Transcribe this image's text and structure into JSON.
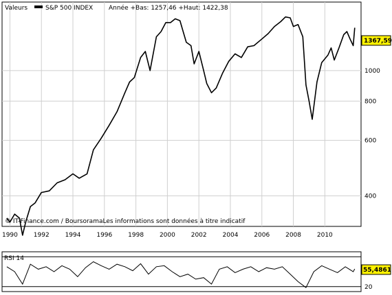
{
  "header": {
    "prefix": "Valeurs",
    "index_name": "S&P 500 INDEX",
    "range_text": "Année +Bas: 1257,46 +Haut: 1422,38"
  },
  "footer_credit": "© IT-Finance.com / BoursoramaLes informations sont données à titre indicatif",
  "colors": {
    "price_line": "#000000",
    "last_value_box": "#fff200",
    "background": "#ffffff",
    "grid": "#cfcfcf"
  },
  "chart_data": [
    {
      "type": "line",
      "title": "",
      "series": [
        {
          "name": "S&P 500 INDEX",
          "x": [
            1989.8,
            1990.0,
            1990.3,
            1990.6,
            1990.8,
            1991.0,
            1991.3,
            1991.6,
            1992.0,
            1992.5,
            1993.0,
            1993.5,
            1994.0,
            1994.4,
            1994.9,
            1995.3,
            1995.8,
            1996.3,
            1996.8,
            1997.3,
            1997.6,
            1997.9,
            1998.3,
            1998.6,
            1998.9,
            1999.3,
            1999.6,
            1999.9,
            2000.2,
            2000.5,
            2000.8,
            2001.0,
            2001.2,
            2001.5,
            2001.7,
            2002.0,
            2002.3,
            2002.5,
            2002.8,
            2003.1,
            2003.5,
            2003.9,
            2004.3,
            2004.7,
            2005.1,
            2005.5,
            2006.0,
            2006.4,
            2006.8,
            2007.2,
            2007.5,
            2007.8,
            2008.0,
            2008.3,
            2008.6,
            2008.8,
            2009.0,
            2009.2,
            2009.5,
            2009.8,
            2010.2,
            2010.4,
            2010.6,
            2010.9,
            2011.2,
            2011.4,
            2011.6,
            2011.8,
            2011.9
          ],
          "values": [
            340,
            330,
            350,
            340,
            300,
            330,
            370,
            380,
            410,
            415,
            440,
            450,
            470,
            455,
            470,
            560,
            610,
            670,
            740,
            850,
            920,
            950,
            1100,
            1150,
            1000,
            1280,
            1330,
            1420,
            1420,
            1460,
            1440,
            1330,
            1230,
            1200,
            1050,
            1150,
            1000,
            910,
            850,
            880,
            980,
            1070,
            1130,
            1100,
            1190,
            1200,
            1260,
            1310,
            1380,
            1430,
            1480,
            1470,
            1380,
            1400,
            1280,
            900,
            800,
            700,
            920,
            1060,
            1120,
            1180,
            1080,
            1180,
            1300,
            1330,
            1260,
            1200,
            1367.59
          ]
        }
      ],
      "xlabel": "",
      "ylabel": "",
      "y_scale": "log",
      "xlim": [
        1989.5,
        2012.3
      ],
      "ylim": [
        320,
        1650
      ],
      "x_ticks": [
        "1990",
        "1992",
        "1994",
        "1996",
        "1998",
        "2000",
        "2002",
        "2004",
        "2006",
        "2008",
        "2010"
      ],
      "y_ticks": [
        "400",
        "600",
        "800",
        "1000"
      ],
      "last_value_label": "1367,59",
      "grid": true
    },
    {
      "type": "line",
      "title": "",
      "series": [
        {
          "name": "RSI 14",
          "x": [
            1989.8,
            1990.3,
            1990.8,
            1991.3,
            1991.8,
            1992.3,
            1992.8,
            1993.3,
            1993.8,
            1994.3,
            1994.8,
            1995.3,
            1995.8,
            1996.3,
            1996.8,
            1997.3,
            1997.8,
            1998.3,
            1998.8,
            1999.3,
            1999.8,
            2000.3,
            2000.8,
            2001.3,
            2001.8,
            2002.3,
            2002.8,
            2003.3,
            2003.8,
            2004.3,
            2004.8,
            2005.3,
            2005.8,
            2006.3,
            2006.8,
            2007.3,
            2007.8,
            2008.3,
            2008.8,
            2009.3,
            2009.8,
            2010.3,
            2010.8,
            2011.3,
            2011.8,
            2011.9
          ],
          "values": [
            60,
            50,
            25,
            65,
            55,
            60,
            50,
            62,
            55,
            40,
            58,
            70,
            62,
            55,
            65,
            60,
            52,
            66,
            45,
            60,
            62,
            50,
            40,
            45,
            35,
            38,
            25,
            55,
            60,
            48,
            55,
            60,
            50,
            58,
            55,
            60,
            45,
            30,
            18,
            50,
            62,
            55,
            48,
            60,
            50,
            55.4861
          ]
        }
      ],
      "xlabel": "",
      "ylabel": "",
      "xlim": [
        1989.5,
        2012.3
      ],
      "ylim": [
        10,
        90
      ],
      "y_ticks": [
        "20"
      ],
      "label": "RSI 14",
      "last_value_label": "55,4861",
      "grid": false
    }
  ]
}
